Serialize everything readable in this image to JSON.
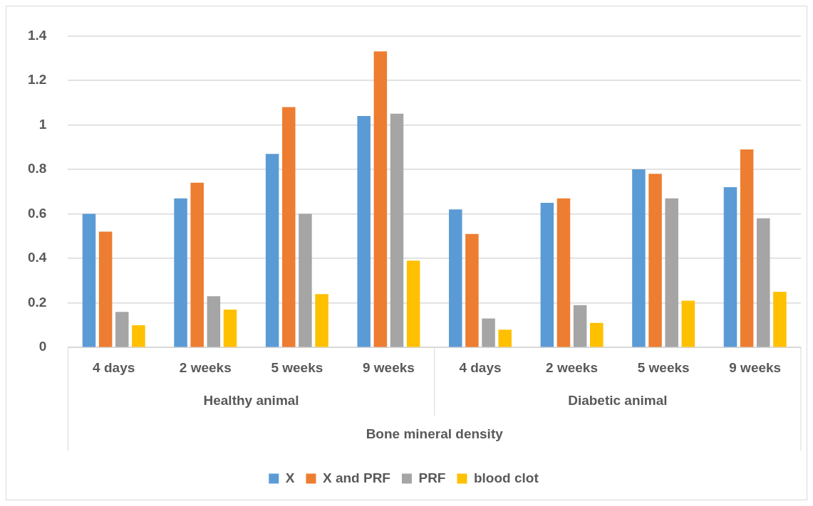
{
  "chart_data": {
    "type": "bar",
    "annotations": [
      "Healthy animal",
      "Diabetic animal",
      "Bone mineral density"
    ],
    "categories": [
      "4 days",
      "2 weeks",
      "5 weeks",
      "9 weeks",
      "4 days",
      "2 weeks",
      "5 weeks",
      "9 weeks"
    ],
    "series": [
      {
        "name": "X",
        "color": "#5b9bd5",
        "values": [
          0.6,
          0.67,
          0.87,
          1.04,
          0.62,
          0.65,
          0.8,
          0.72
        ]
      },
      {
        "name": "X and PRF",
        "color": "#ed7d31",
        "values": [
          0.52,
          0.74,
          1.08,
          1.33,
          0.51,
          0.67,
          0.78,
          0.89
        ]
      },
      {
        "name": "PRF",
        "color": "#a5a5a5",
        "values": [
          0.16,
          0.23,
          0.6,
          1.05,
          0.13,
          0.19,
          0.67,
          0.58
        ]
      },
      {
        "name": "blood clot",
        "color": "#ffc000",
        "values": [
          0.1,
          0.17,
          0.24,
          0.39,
          0.08,
          0.11,
          0.21,
          0.25
        ]
      }
    ],
    "ylim": [
      0,
      1.4
    ],
    "yticks": [
      0,
      0.2,
      0.4,
      0.6,
      0.8,
      1,
      1.2,
      1.4
    ],
    "grid": "y",
    "legend": "bottom"
  }
}
